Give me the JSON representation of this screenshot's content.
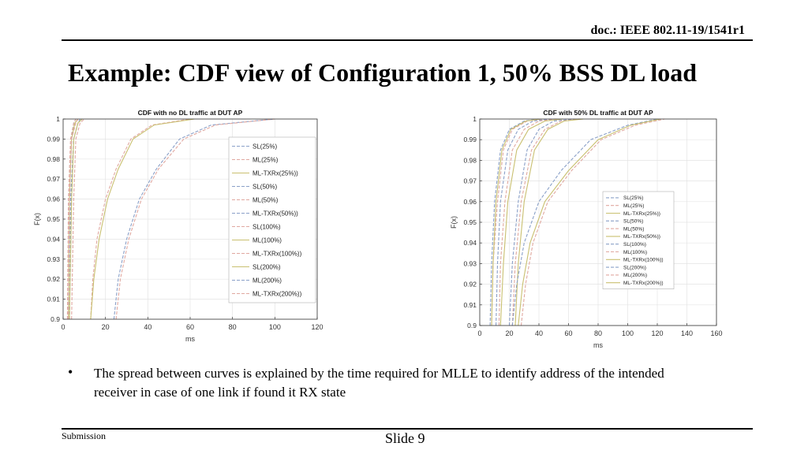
{
  "header": {
    "doc_ref": "doc.: IEEE 802.11-19/1541r1"
  },
  "title": "Example: CDF view of Configuration 1, 50%  BSS DL load",
  "bullet": "The spread between curves is explained  by the time required for MLLE to identify address of the intended receiver in case of one link if found it RX state",
  "footer": {
    "submission": "Submission",
    "slide": "Slide 9"
  },
  "colors": {
    "sl": "#8aa0c8",
    "ml": "#e0a8a0",
    "txrx": "#c9c070",
    "grid": "#e4e4e4",
    "axis": "#333333"
  },
  "chart_data": [
    {
      "type": "line",
      "title": "CDF with no DL traffic at DUT AP",
      "xlabel": "ms",
      "ylabel": "F(x)",
      "xlim": [
        0,
        120
      ],
      "ylim": [
        0.9,
        1
      ],
      "xticks": [
        0,
        20,
        40,
        60,
        80,
        100,
        120
      ],
      "yticks": [
        0.9,
        0.91,
        0.92,
        0.93,
        0.94,
        0.95,
        0.96,
        0.97,
        0.98,
        0.99,
        1
      ],
      "ytick_labels": [
        "0.9",
        "0.91",
        "0.92",
        "0.93",
        "0.94",
        "0.95",
        "0.96",
        "0.97",
        "0.98",
        "0.99",
        "1"
      ],
      "legend_position": "right",
      "legend_size": "large",
      "series": [
        {
          "name": "SL(25%)",
          "style": "sl",
          "x": [
            2.5,
            3,
            4,
            5,
            6
          ],
          "y": [
            0.9,
            0.96,
            0.99,
            0.998,
            1.0
          ]
        },
        {
          "name": "ML(25%)",
          "style": "ml",
          "x": [
            2,
            2.5,
            3.5,
            5,
            6
          ],
          "y": [
            0.9,
            0.96,
            0.99,
            0.998,
            1.0
          ]
        },
        {
          "name": "ML-TXRx(25%))",
          "style": "txrx",
          "x": [
            2.5,
            3,
            4,
            5.5,
            7
          ],
          "y": [
            0.9,
            0.96,
            0.99,
            0.998,
            1.0
          ]
        },
        {
          "name": "SL(50%)",
          "style": "sl",
          "x": [
            3,
            3.5,
            5,
            7,
            8
          ],
          "y": [
            0.9,
            0.96,
            0.99,
            0.998,
            1.0
          ]
        },
        {
          "name": "ML(50%)",
          "style": "ml",
          "x": [
            2.5,
            3,
            4,
            6,
            7
          ],
          "y": [
            0.9,
            0.96,
            0.99,
            0.998,
            1.0
          ]
        },
        {
          "name": "ML-TXRx(50%))",
          "style": "sl",
          "x": [
            3,
            4,
            5,
            7,
            9
          ],
          "y": [
            0.9,
            0.96,
            0.99,
            0.998,
            1.0
          ]
        },
        {
          "name": "SL(100%)",
          "style": "ml",
          "x": [
            4,
            5,
            6,
            8,
            10
          ],
          "y": [
            0.9,
            0.96,
            0.99,
            0.998,
            1.0
          ]
        },
        {
          "name": "ML(100%)",
          "style": "txrx",
          "x": [
            3,
            4,
            5,
            7,
            9
          ],
          "y": [
            0.9,
            0.96,
            0.99,
            0.998,
            1.0
          ]
        },
        {
          "name": "ML-TXRx(100%))",
          "style": "ml",
          "x": [
            13,
            14,
            16,
            20,
            25,
            32,
            42,
            60
          ],
          "y": [
            0.9,
            0.92,
            0.94,
            0.96,
            0.975,
            0.99,
            0.997,
            1.0
          ]
        },
        {
          "name": "SL(200%)",
          "style": "txrx",
          "x": [
            13,
            14.5,
            17,
            21,
            26,
            33,
            43,
            62
          ],
          "y": [
            0.9,
            0.92,
            0.94,
            0.96,
            0.975,
            0.99,
            0.997,
            1.0
          ]
        },
        {
          "name": "ML(200%)",
          "style": "sl",
          "x": [
            24,
            26,
            30,
            36,
            44,
            55,
            70,
            100
          ],
          "y": [
            0.9,
            0.92,
            0.94,
            0.96,
            0.975,
            0.99,
            0.997,
            1.0
          ]
        },
        {
          "name": "ML-TXRx(200%))",
          "style": "ml",
          "x": [
            25,
            27,
            31,
            37,
            45,
            57,
            72,
            100
          ],
          "y": [
            0.9,
            0.92,
            0.94,
            0.96,
            0.975,
            0.99,
            0.997,
            1.0
          ]
        }
      ]
    },
    {
      "type": "line",
      "title": "CDF with 50% DL traffic at DUT AP",
      "xlabel": "ms",
      "ylabel": "F(x)",
      "xlim": [
        0,
        160
      ],
      "ylim": [
        0.9,
        1
      ],
      "xticks": [
        0,
        20,
        40,
        60,
        80,
        100,
        120,
        140,
        160
      ],
      "yticks": [
        0.9,
        0.91,
        0.92,
        0.93,
        0.94,
        0.95,
        0.96,
        0.97,
        0.98,
        0.99,
        1
      ],
      "ytick_labels": [
        "0.9",
        "0.91",
        "0.92",
        "0.93",
        "0.94",
        "0.95",
        "0.96",
        "0.97",
        "0.98",
        "0.99",
        "1"
      ],
      "legend_position": "right",
      "legend_size": "small",
      "series": [
        {
          "name": "SL(25%)",
          "style": "sl",
          "x": [
            7,
            8,
            10,
            14,
            20,
            30,
            40
          ],
          "y": [
            0.9,
            0.93,
            0.96,
            0.985,
            0.995,
            0.999,
            1.0
          ]
        },
        {
          "name": "ML(25%)",
          "style": "ml",
          "x": [
            8,
            9,
            12,
            16,
            22,
            32,
            42
          ],
          "y": [
            0.9,
            0.93,
            0.96,
            0.985,
            0.995,
            0.999,
            1.0
          ]
        },
        {
          "name": "ML-TXRx(25%))",
          "style": "txrx",
          "x": [
            8,
            9,
            11,
            15,
            21,
            31,
            41
          ],
          "y": [
            0.9,
            0.93,
            0.96,
            0.985,
            0.995,
            0.999,
            1.0
          ]
        },
        {
          "name": "SL(50%)",
          "style": "sl",
          "x": [
            11,
            12,
            14,
            19,
            26,
            36,
            48
          ],
          "y": [
            0.9,
            0.93,
            0.96,
            0.985,
            0.995,
            0.999,
            1.0
          ]
        },
        {
          "name": "ML(50%)",
          "style": "ml",
          "x": [
            13,
            14,
            17,
            22,
            30,
            40,
            52
          ],
          "y": [
            0.9,
            0.93,
            0.96,
            0.985,
            0.995,
            0.999,
            1.0
          ]
        },
        {
          "name": "ML-TXRx(50%))",
          "style": "txrx",
          "x": [
            14,
            16,
            19,
            25,
            33,
            44,
            56
          ],
          "y": [
            0.9,
            0.93,
            0.96,
            0.985,
            0.995,
            0.999,
            1.0
          ]
        },
        {
          "name": "SL(100%)",
          "style": "sl",
          "x": [
            20,
            22,
            26,
            32,
            40,
            50,
            64
          ],
          "y": [
            0.9,
            0.93,
            0.96,
            0.985,
            0.995,
            0.999,
            1.0
          ]
        },
        {
          "name": "ML(100%)",
          "style": "ml",
          "x": [
            22,
            24,
            28,
            35,
            44,
            55,
            68
          ],
          "y": [
            0.9,
            0.93,
            0.96,
            0.985,
            0.995,
            0.999,
            1.0
          ]
        },
        {
          "name": "ML-TXRx(100%))",
          "style": "txrx",
          "x": [
            24,
            26,
            30,
            37,
            46,
            57,
            70
          ],
          "y": [
            0.9,
            0.93,
            0.96,
            0.985,
            0.995,
            0.999,
            1.0
          ]
        },
        {
          "name": "SL(200%)",
          "style": "sl",
          "x": [
            22,
            25,
            30,
            40,
            55,
            75,
            100,
            120
          ],
          "y": [
            0.9,
            0.92,
            0.94,
            0.96,
            0.975,
            0.99,
            0.997,
            1.0
          ]
        },
        {
          "name": "ML(200%)",
          "style": "ml",
          "x": [
            28,
            31,
            36,
            46,
            62,
            82,
            105,
            125
          ],
          "y": [
            0.9,
            0.92,
            0.94,
            0.96,
            0.975,
            0.99,
            0.997,
            1.0
          ]
        },
        {
          "name": "ML-TXRx(200%))",
          "style": "txrx",
          "x": [
            26,
            29,
            34,
            44,
            60,
            80,
            102,
            122
          ],
          "y": [
            0.9,
            0.92,
            0.94,
            0.96,
            0.975,
            0.99,
            0.997,
            1.0
          ]
        }
      ]
    }
  ]
}
